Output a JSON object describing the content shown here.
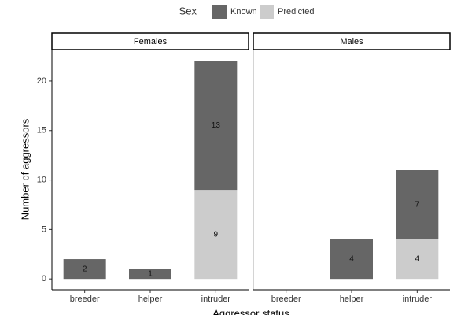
{
  "chart_data": {
    "type": "bar",
    "stacked": true,
    "legend_title": "Sex",
    "y_label": "Number of aggressors",
    "x_label": "Aggressor status",
    "categories": [
      "breeder",
      "helper",
      "intruder"
    ],
    "series": [
      {
        "name": "Known",
        "color": "#666666"
      },
      {
        "name": "Predicted",
        "color": "#cccccc"
      }
    ],
    "facets": [
      {
        "title": "Females",
        "series": [
          {
            "values": [
              2,
              1,
              13
            ]
          },
          {
            "values": [
              null,
              null,
              9
            ]
          }
        ]
      },
      {
        "title": "Males",
        "series": [
          {
            "values": [
              null,
              4,
              7
            ]
          },
          {
            "values": [
              null,
              null,
              4
            ]
          }
        ]
      }
    ],
    "ylim": [
      -1.1,
      23.1
    ],
    "yticks": [
      0,
      5,
      10,
      15,
      20
    ]
  }
}
